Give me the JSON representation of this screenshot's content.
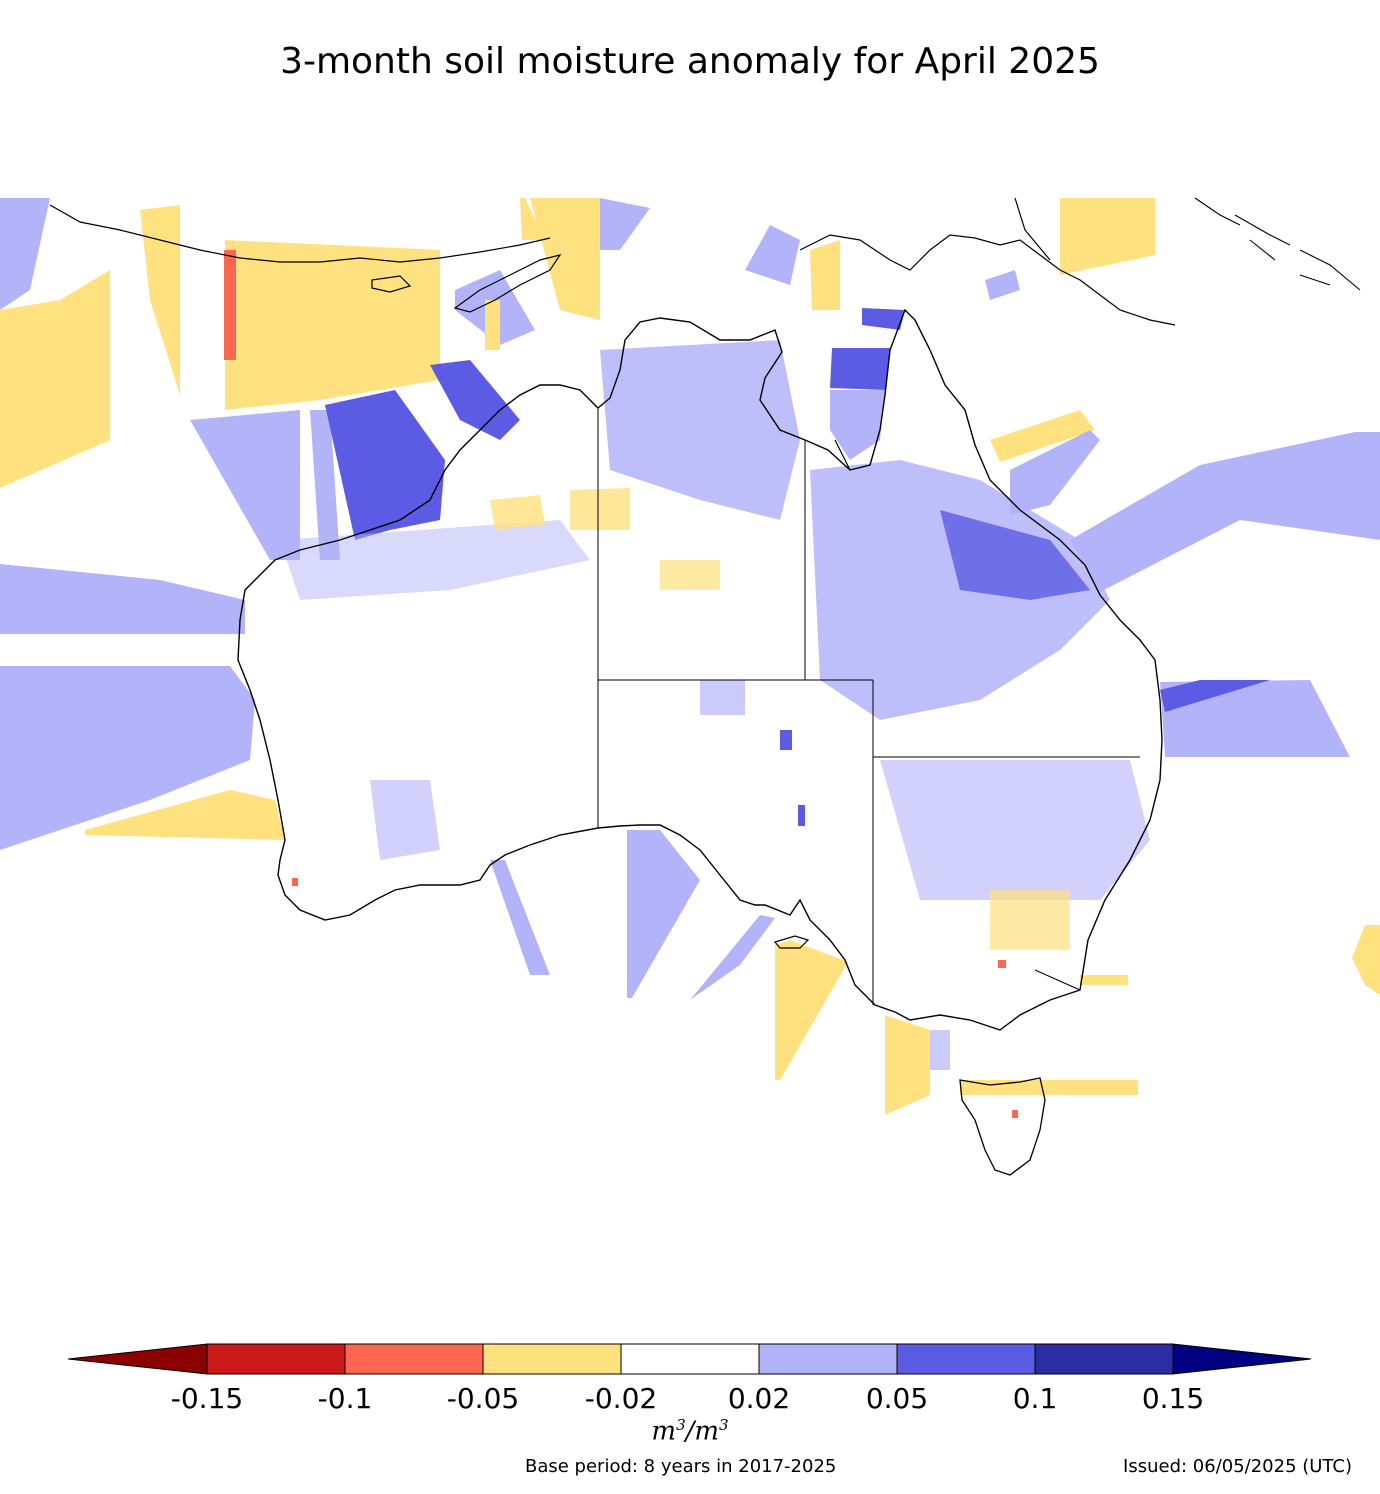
{
  "title": "3-month soil moisture anomaly for April 2025",
  "legend": {
    "tick_labels": [
      "-0.15",
      "-0.1",
      "-0.05",
      "-0.02",
      "0.02",
      "0.05",
      "0.1",
      "0.15"
    ],
    "unit_base": "m",
    "unit_exp": "3",
    "unit_sep": "/",
    "classes": [
      {
        "range": "< -0.15",
        "color": "#8b0000"
      },
      {
        "range": "-0.15 to -0.1",
        "color": "#cc1a1a"
      },
      {
        "range": "-0.1 to -0.05",
        "color": "#ff6650"
      },
      {
        "range": "-0.05 to -0.02",
        "color": "#ffe17f"
      },
      {
        "range": "-0.02 to 0.02",
        "color": "#ffffff"
      },
      {
        "range": "0.02 to 0.05",
        "color": "#b3b3fa"
      },
      {
        "range": "0.05 to 0.1",
        "color": "#5b5be4"
      },
      {
        "range": "0.1 to 0.15",
        "color": "#2c2ca3"
      },
      {
        "range": "> 0.15",
        "color": "#000080"
      }
    ]
  },
  "footer": {
    "base_period": "Base period: 8 years in 2017-2025",
    "issued": "Issued: 06/05/2025 (UTC)"
  }
}
